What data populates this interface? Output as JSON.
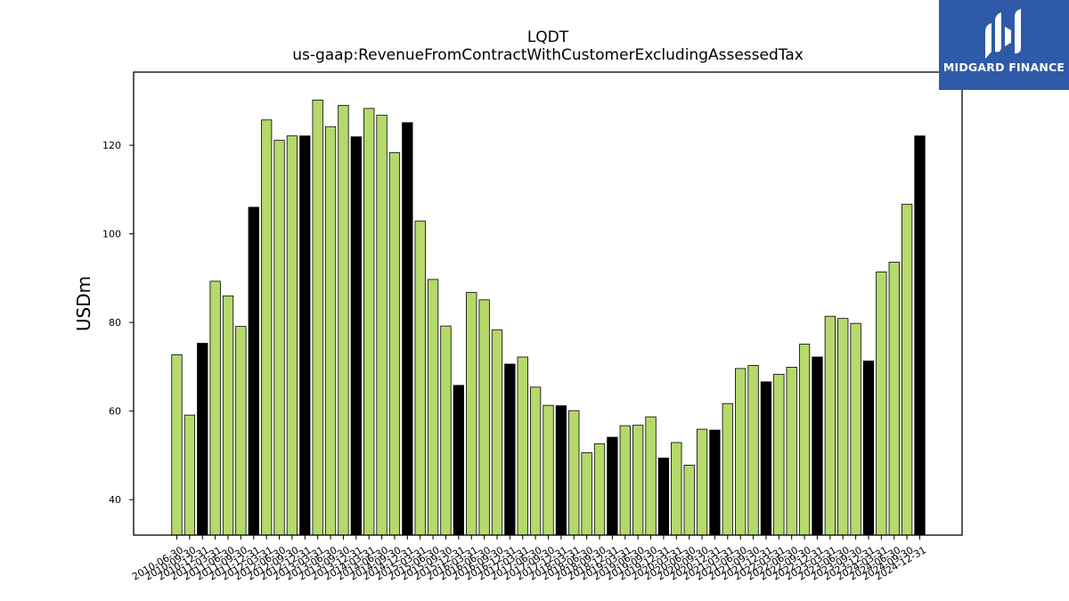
{
  "chart_data": {
    "type": "bar",
    "title": "LQDT",
    "subtitle": "us-gaap:RevenueFromContractWithCustomerExcludingAssessedTax",
    "ylabel": "USDm",
    "xlabel": "",
    "ylim": [
      32,
      136.5
    ],
    "yticks": [
      40,
      60,
      80,
      100,
      120
    ],
    "grid": false,
    "colors": {
      "quarter": "#b5d96b",
      "annual": "#000000",
      "edge": "#000000"
    },
    "categories": [
      "2010-06-30",
      "2010-09-30",
      "2010-12-31",
      "2011-03-31",
      "2011-06-30",
      "2011-09-30",
      "2011-12-31",
      "2012-03-31",
      "2012-06-30",
      "2012-09-30",
      "2012-12-31",
      "2013-03-31",
      "2013-06-30",
      "2013-09-30",
      "2013-12-31",
      "2014-03-31",
      "2014-06-30",
      "2014-09-30",
      "2014-12-31",
      "2015-03-31",
      "2015-06-30",
      "2015-09-30",
      "2015-12-31",
      "2016-03-31",
      "2016-06-30",
      "2016-09-30",
      "2016-12-31",
      "2017-03-31",
      "2017-06-30",
      "2017-09-30",
      "2017-12-31",
      "2018-03-31",
      "2018-06-30",
      "2018-09-30",
      "2018-12-31",
      "2019-03-31",
      "2019-06-30",
      "2019-09-30",
      "2019-12-31",
      "2020-03-31",
      "2020-06-30",
      "2020-09-30",
      "2020-12-31",
      "2021-03-31",
      "2021-06-30",
      "2021-09-30",
      "2021-12-31",
      "2022-03-31",
      "2022-06-30",
      "2022-09-30",
      "2022-12-31",
      "2023-03-31",
      "2023-06-30",
      "2023-09-30",
      "2023-12-31",
      "2024-03-31",
      "2024-06-30",
      "2024-09-30",
      "2024-12-31"
    ],
    "values": [
      72.7,
      59.1,
      75.3,
      89.3,
      86.0,
      79.1,
      106.0,
      125.7,
      121.1,
      122.1,
      122.1,
      130.2,
      124.2,
      129.0,
      121.9,
      128.3,
      126.8,
      118.3,
      125.1,
      102.9,
      89.7,
      79.2,
      65.8,
      86.8,
      85.1,
      78.3,
      70.6,
      72.2,
      65.4,
      61.3,
      61.2,
      60.1,
      50.6,
      52.6,
      54.1,
      56.7,
      56.8,
      58.7,
      49.4,
      52.9,
      47.8,
      55.9,
      55.7,
      61.7,
      69.6,
      70.3,
      66.6,
      68.3,
      69.9,
      75.1,
      72.2,
      81.4,
      80.9,
      79.8,
      71.3,
      91.4,
      93.6,
      106.7,
      122.1
    ],
    "annual_flags": [
      false,
      false,
      true,
      false,
      false,
      false,
      true,
      false,
      false,
      false,
      true,
      false,
      false,
      false,
      true,
      false,
      false,
      false,
      true,
      false,
      false,
      false,
      true,
      false,
      false,
      false,
      true,
      false,
      false,
      false,
      true,
      false,
      false,
      false,
      true,
      false,
      false,
      false,
      true,
      false,
      false,
      false,
      true,
      false,
      false,
      false,
      true,
      false,
      false,
      false,
      true,
      false,
      false,
      false,
      true,
      false,
      false,
      false,
      true
    ]
  },
  "logo": {
    "text": "MIDGARD FINANCE",
    "icon": "midgard-logo-icon"
  }
}
